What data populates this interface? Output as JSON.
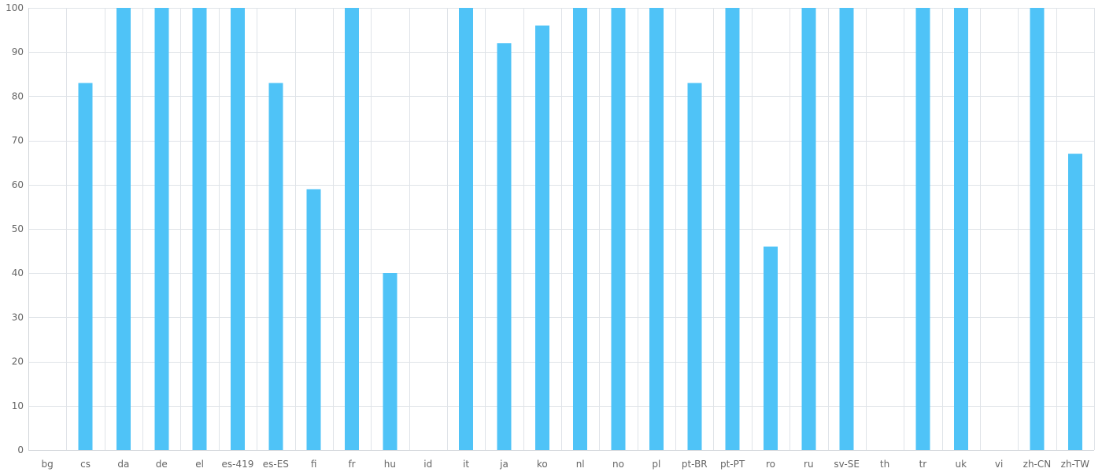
{
  "chart_data": {
    "type": "bar",
    "categories": [
      "bg",
      "cs",
      "da",
      "de",
      "el",
      "es-419",
      "es-ES",
      "fi",
      "fr",
      "hu",
      "id",
      "it",
      "ja",
      "ko",
      "nl",
      "no",
      "pl",
      "pt-BR",
      "pt-PT",
      "ro",
      "ru",
      "sv-SE",
      "th",
      "tr",
      "uk",
      "vi",
      "zh-CN",
      "zh-TW"
    ],
    "values": [
      0,
      83,
      100,
      100,
      100,
      100,
      83,
      59,
      100,
      40,
      0,
      100,
      92,
      96,
      100,
      100,
      100,
      83,
      100,
      46,
      100,
      100,
      0,
      100,
      100,
      0,
      100,
      67
    ],
    "yticks": [
      0,
      10,
      20,
      30,
      40,
      50,
      60,
      70,
      80,
      90,
      100
    ],
    "ylim": [
      0,
      100
    ],
    "title": "",
    "xlabel": "",
    "ylabel": "",
    "grid": true,
    "legend": "none",
    "bar_color": "#4fc3f7",
    "grid_color": "#dfe3e8",
    "label_color": "#666666"
  }
}
